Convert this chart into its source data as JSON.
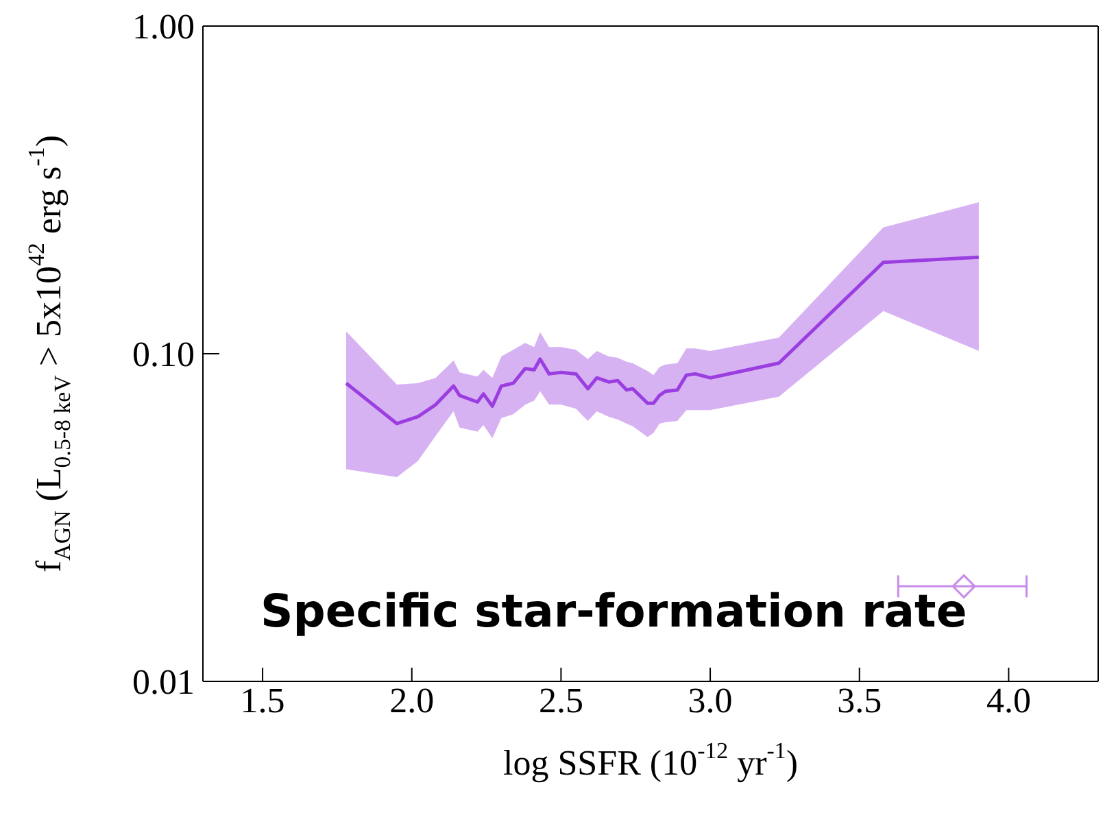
{
  "chart_data": {
    "type": "line",
    "xlabel": "log SSFR (10$^{-12}$ yr$^{-1}$)",
    "ylabel": "f$_{AGN}$ (L$_{0.5-8 keV}$ > 5x10$^{42}$ erg s$^{-1}$)",
    "annotations": [
      "Specific star-formation rate"
    ],
    "xlim": [
      1.3,
      4.3
    ],
    "xticks": [
      {
        "value": 1.5,
        "label": "1.5"
      },
      {
        "value": 2,
        "label": "2.0"
      },
      {
        "value": 2.5,
        "label": "2.5"
      },
      {
        "value": 3,
        "label": "3.0"
      },
      {
        "value": 3.5,
        "label": "3.5"
      },
      {
        "value": 4,
        "label": "4.0"
      }
    ],
    "ylim": [
      0.01,
      1
    ],
    "yticks": [
      {
        "value": 0.01,
        "label": "0.01"
      },
      {
        "value": 0.1,
        "label": "0.10"
      },
      {
        "value": 1,
        "label": "1.00"
      }
    ],
    "log": "y",
    "series": [
      {
        "color": "#9b3ee0",
        "x": [
          1.78,
          1.95,
          2.02,
          2.08,
          2.14,
          2.16,
          2.22,
          2.24,
          2.27,
          2.3,
          2.34,
          2.38,
          2.41,
          2.43,
          2.46,
          2.5,
          2.55,
          2.59,
          2.62,
          2.66,
          2.69,
          2.72,
          2.74,
          2.79,
          2.81,
          2.83,
          2.85,
          2.89,
          2.92,
          2.95,
          3.0,
          3.23,
          3.58,
          3.9
        ],
        "values": [
          0.0813,
          0.0612,
          0.0642,
          0.0699,
          0.0797,
          0.0746,
          0.0712,
          0.0754,
          0.0692,
          0.0797,
          0.0813,
          0.0901,
          0.0893,
          0.0963,
          0.0868,
          0.0877,
          0.0868,
          0.0782,
          0.0844,
          0.082,
          0.0828,
          0.0775,
          0.0782,
          0.0706,
          0.0706,
          0.0746,
          0.0768,
          0.0775,
          0.086,
          0.0868,
          0.0844,
          0.0936,
          0.19,
          0.197
        ],
        "lower": [
          0.0444,
          0.042,
          0.047,
          0.0562,
          0.0667,
          0.0595,
          0.0578,
          0.0606,
          0.0552,
          0.0636,
          0.0654,
          0.0699,
          0.0719,
          0.0768,
          0.0699,
          0.0699,
          0.0679,
          0.0624,
          0.0667,
          0.0642,
          0.063,
          0.0612,
          0.0601,
          0.0557,
          0.0573,
          0.0612,
          0.0618,
          0.0624,
          0.0673,
          0.0673,
          0.0673,
          0.0739,
          0.135,
          0.102
        ],
        "upper": [
          0.117,
          0.0805,
          0.0813,
          0.0844,
          0.0954,
          0.0877,
          0.0852,
          0.0893,
          0.0844,
          0.0981,
          0.1028,
          0.1079,
          0.1048,
          0.1164,
          0.1048,
          0.1048,
          0.1028,
          0.0963,
          0.1019,
          0.0981,
          0.0972,
          0.0945,
          0.0936,
          0.0885,
          0.086,
          0.091,
          0.0927,
          0.0936,
          0.1038,
          0.1038,
          0.1019,
          0.112,
          0.243,
          0.29
        ]
      },
      {
        "type": "scatter",
        "color": "#c78be8",
        "marker": "diamond",
        "x": [
          3.85
        ],
        "values": [
          0.0195
        ],
        "xerrors": [
          [
            3.63,
            4.06
          ]
        ]
      }
    ]
  }
}
